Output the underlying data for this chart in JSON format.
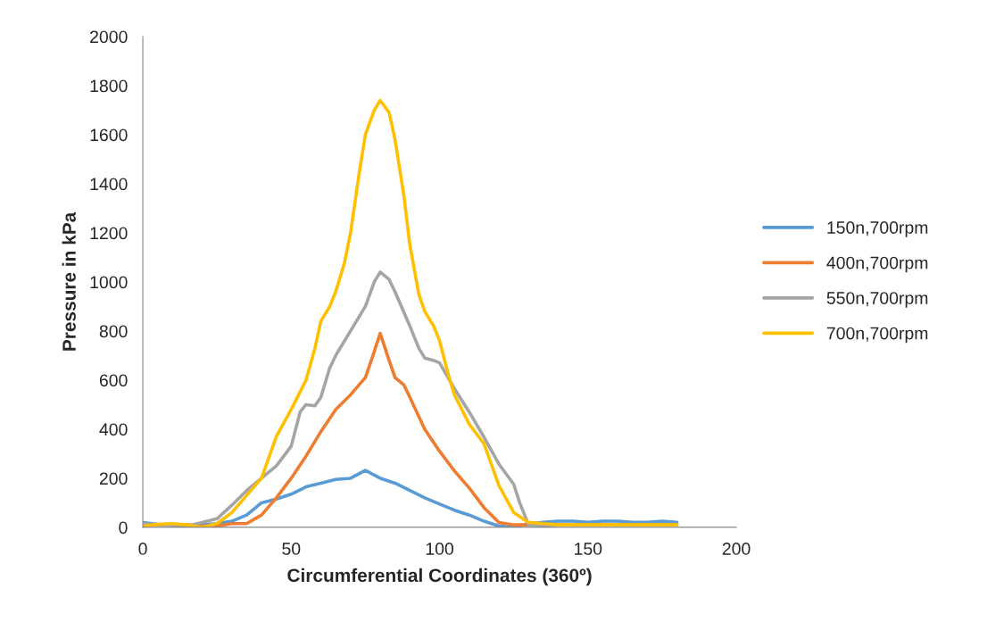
{
  "chart_data": {
    "type": "line",
    "xlabel": "Circumferential Coordinates (360º)",
    "ylabel": "Pressure in kPa",
    "xlim": [
      0,
      200
    ],
    "xticks": [
      0,
      50,
      100,
      150,
      200
    ],
    "ylim": [
      0,
      2000
    ],
    "yticks": [
      0,
      200,
      400,
      600,
      800,
      1000,
      1200,
      1400,
      1600,
      1800,
      2000
    ],
    "grid": false,
    "legend": "right",
    "marker": "none",
    "line_style": "solid",
    "series": [
      {
        "name": "150n,700rpm",
        "color": "#5b9bd5",
        "x": [
          0,
          5,
          10,
          15,
          20,
          25,
          30,
          35,
          40,
          45,
          50,
          55,
          60,
          65,
          70,
          75,
          80,
          85,
          90,
          95,
          100,
          105,
          110,
          115,
          120,
          125,
          130,
          135,
          140,
          145,
          150,
          155,
          160,
          165,
          170,
          175,
          180
        ],
        "values": [
          20,
          12,
          10,
          8,
          10,
          15,
          25,
          50,
          100,
          115,
          135,
          165,
          180,
          195,
          200,
          232,
          200,
          180,
          150,
          120,
          95,
          70,
          50,
          25,
          5,
          0,
          15,
          20,
          25,
          25,
          20,
          25,
          25,
          20,
          20,
          25,
          20
        ]
      },
      {
        "name": "400n,700rpm",
        "color": "#ed7d31",
        "x": [
          10,
          15,
          20,
          25,
          30,
          35,
          40,
          45,
          50,
          55,
          60,
          65,
          70,
          75,
          77,
          80,
          83,
          85,
          88,
          90,
          95,
          100,
          105,
          110,
          115,
          120,
          125,
          130,
          140,
          150,
          160,
          170,
          180
        ],
        "values": [
          5,
          10,
          5,
          5,
          15,
          15,
          50,
          120,
          200,
          290,
          390,
          480,
          540,
          610,
          680,
          790,
          680,
          610,
          580,
          530,
          400,
          310,
          230,
          160,
          80,
          20,
          10,
          10,
          10,
          10,
          10,
          10,
          10
        ]
      },
      {
        "name": "550n,700rpm",
        "color": "#a5a5a5",
        "x": [
          0,
          5,
          10,
          15,
          20,
          25,
          30,
          35,
          40,
          45,
          50,
          53,
          55,
          58,
          60,
          63,
          65,
          70,
          75,
          78,
          80,
          83,
          85,
          90,
          93,
          95,
          98,
          100,
          105,
          110,
          115,
          120,
          125,
          127,
          130,
          135,
          140,
          150,
          160,
          170,
          180
        ],
        "values": [
          15,
          10,
          8,
          5,
          20,
          35,
          90,
          150,
          200,
          250,
          330,
          470,
          500,
          495,
          530,
          650,
          700,
          800,
          900,
          1000,
          1040,
          1010,
          960,
          820,
          730,
          690,
          680,
          670,
          565,
          470,
          367,
          258,
          175,
          100,
          10,
          5,
          10,
          10,
          10,
          10,
          10
        ]
      },
      {
        "name": "700n,700rpm",
        "color": "#ffc000",
        "x": [
          0,
          5,
          10,
          15,
          20,
          25,
          30,
          35,
          40,
          45,
          50,
          55,
          58,
          60,
          63,
          65,
          68,
          70,
          73,
          75,
          78,
          80,
          83,
          85,
          88,
          90,
          93,
          95,
          98,
          100,
          103,
          105,
          110,
          115,
          120,
          125,
          130,
          135,
          140,
          150,
          160,
          170,
          180
        ],
        "values": [
          5,
          12,
          15,
          10,
          0,
          15,
          60,
          130,
          200,
          370,
          480,
          600,
          730,
          840,
          900,
          960,
          1080,
          1200,
          1450,
          1600,
          1700,
          1740,
          1690,
          1580,
          1350,
          1150,
          950,
          880,
          820,
          760,
          620,
          540,
          420,
          340,
          170,
          60,
          20,
          15,
          10,
          10,
          10,
          10,
          10
        ]
      }
    ]
  }
}
